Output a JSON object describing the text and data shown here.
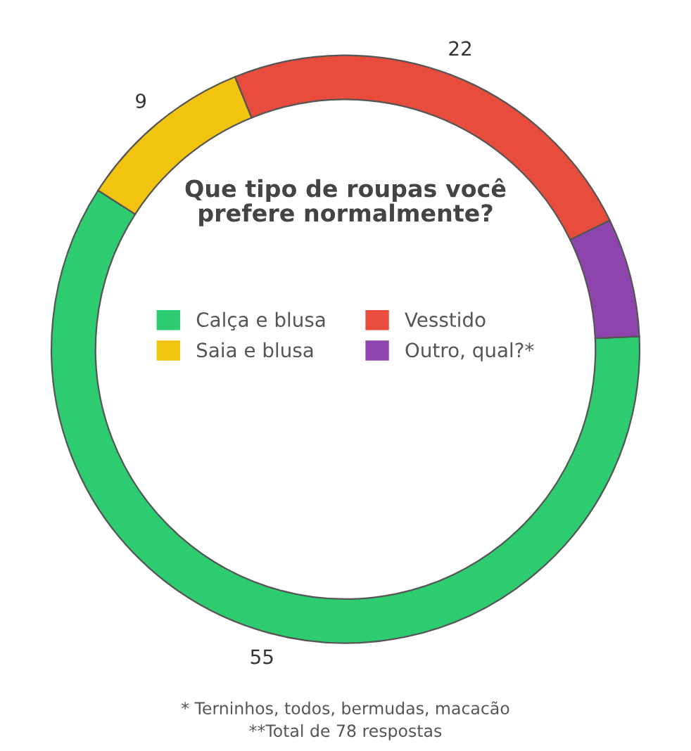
{
  "chart_data": {
    "type": "donut",
    "title": "Que tipo de roupas você prefere normalmente?",
    "categories": [
      "Calça e blusa",
      "Saia e blusa",
      "Vesstido",
      "Outro, qual?*"
    ],
    "values": [
      55,
      9,
      22,
      6
    ],
    "value_labels": [
      "55",
      "9",
      "22",
      null
    ],
    "colors": [
      "#2ecc71",
      "#f1c40f",
      "#e74c3c",
      "#8e44ad"
    ],
    "legend": "center",
    "annotations": [
      "* Terninhos, todos, bermudas, macacão",
      "**Total de 78 respostas"
    ]
  }
}
